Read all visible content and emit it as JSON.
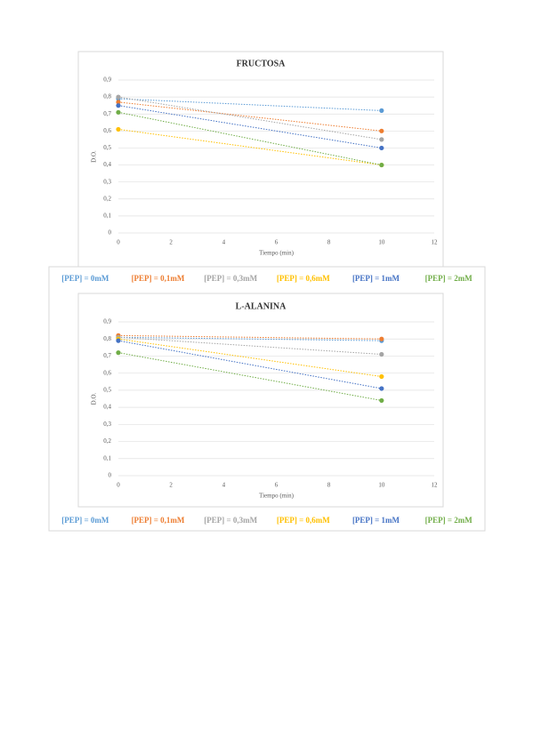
{
  "chart_data": [
    {
      "type": "line",
      "title": "FRUCTOSA",
      "x_label": "Tiempo (min)",
      "y_label": "D.O.",
      "x": [
        0,
        10
      ],
      "xlim": [
        0,
        12
      ],
      "xticks": [
        0,
        2,
        4,
        6,
        8,
        10,
        12
      ],
      "ylim": [
        0,
        0.9
      ],
      "yticks": [
        0,
        {
          "value": 0.1,
          "label": "0,1"
        },
        {
          "value": 0.2,
          "label": "0,2"
        },
        {
          "value": 0.3,
          "label": "0,3"
        },
        {
          "value": 0.4,
          "label": "0,4"
        },
        {
          "value": 0.5,
          "label": "0,5"
        },
        {
          "value": 0.6,
          "label": "0,6"
        },
        {
          "value": 0.7,
          "label": "0,7"
        },
        {
          "value": 0.8,
          "label": "0,8"
        },
        {
          "value": 0.9,
          "label": "0,9"
        }
      ],
      "grid": true,
      "series": [
        {
          "name": "[PEP] = 0mM",
          "color": "#5b9bd5",
          "values": [
            0.79,
            0.72
          ]
        },
        {
          "name": "[PEP] = 0,1mM",
          "color": "#ed7d31",
          "values": [
            0.77,
            0.6
          ]
        },
        {
          "name": "[PEP] = 0,3mM",
          "color": "#a5a5a5",
          "values": [
            0.8,
            0.55
          ]
        },
        {
          "name": "[PEP] = 0,6mM",
          "color": "#ffc000",
          "values": [
            0.61,
            0.4
          ]
        },
        {
          "name": "[PEP] = 1mM",
          "color": "#4472c4",
          "values": [
            0.75,
            0.5
          ]
        },
        {
          "name": "[PEP] = 2mM",
          "color": "#70ad47",
          "values": [
            0.71,
            0.4
          ]
        }
      ]
    },
    {
      "type": "line",
      "title": "L-ALANINA",
      "x_label": "Tiempo (min)",
      "y_label": "D.O.",
      "x": [
        0,
        10
      ],
      "xlim": [
        0,
        12
      ],
      "xticks": [
        0,
        2,
        4,
        6,
        8,
        10,
        12
      ],
      "ylim": [
        0,
        0.9
      ],
      "yticks": [
        0,
        {
          "value": 0.1,
          "label": "0,1"
        },
        {
          "value": 0.2,
          "label": "0,2"
        },
        {
          "value": 0.3,
          "label": "0,3"
        },
        {
          "value": 0.4,
          "label": "0,4"
        },
        {
          "value": 0.5,
          "label": "0,5"
        },
        {
          "value": 0.6,
          "label": "0,6"
        },
        {
          "value": 0.7,
          "label": "0,7"
        },
        {
          "value": 0.8,
          "label": "0,8"
        },
        {
          "value": 0.9,
          "label": "0,9"
        }
      ],
      "grid": true,
      "series": [
        {
          "name": "[PEP] = 0mM",
          "color": "#5b9bd5",
          "values": [
            0.81,
            0.79
          ]
        },
        {
          "name": "[PEP] = 0,1mM",
          "color": "#ed7d31",
          "values": [
            0.82,
            0.8
          ]
        },
        {
          "name": "[PEP] = 0,3mM",
          "color": "#a5a5a5",
          "values": [
            0.81,
            0.71
          ]
        },
        {
          "name": "[PEP] = 0,6mM",
          "color": "#ffc000",
          "values": [
            0.8,
            0.58
          ]
        },
        {
          "name": "[PEP] = 1mM",
          "color": "#4472c4",
          "values": [
            0.79,
            0.51
          ]
        },
        {
          "name": "[PEP] = 2mM",
          "color": "#70ad47",
          "values": [
            0.72,
            0.44
          ]
        }
      ]
    }
  ]
}
